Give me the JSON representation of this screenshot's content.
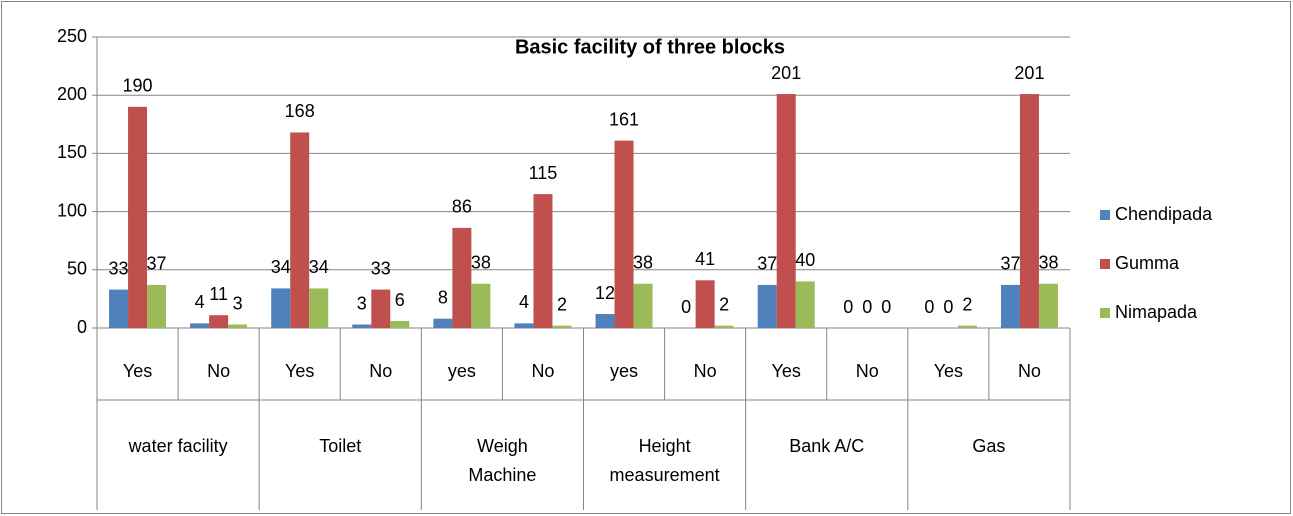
{
  "chart_data": {
    "type": "bar",
    "title": "Basic facility of three blocks",
    "categories": [
      "Yes",
      "No",
      "Yes",
      "No",
      "yes",
      "No",
      "yes",
      "No",
      "Yes",
      "No",
      "Yes",
      "No"
    ],
    "groups": [
      "water facility",
      "Toilet",
      "Weigh Machine",
      "Height measurement",
      "Bank A/C",
      "Gas"
    ],
    "series": [
      {
        "name": "Chendipada",
        "color": "#4f81bd",
        "values": [
          33,
          4,
          34,
          3,
          8,
          4,
          12,
          0,
          37,
          0,
          0,
          37
        ]
      },
      {
        "name": "Gumma",
        "color": "#c0504d",
        "values": [
          190,
          11,
          168,
          33,
          86,
          115,
          161,
          41,
          201,
          0,
          0,
          201
        ]
      },
      {
        "name": "Nimapada",
        "color": "#9bbb59",
        "values": [
          37,
          3,
          34,
          6,
          38,
          2,
          38,
          2,
          40,
          0,
          2,
          38
        ]
      }
    ],
    "ylim": [
      0,
      250
    ],
    "yticks": [
      0,
      50,
      100,
      150,
      200,
      250
    ],
    "grid": true,
    "legend": "right"
  }
}
